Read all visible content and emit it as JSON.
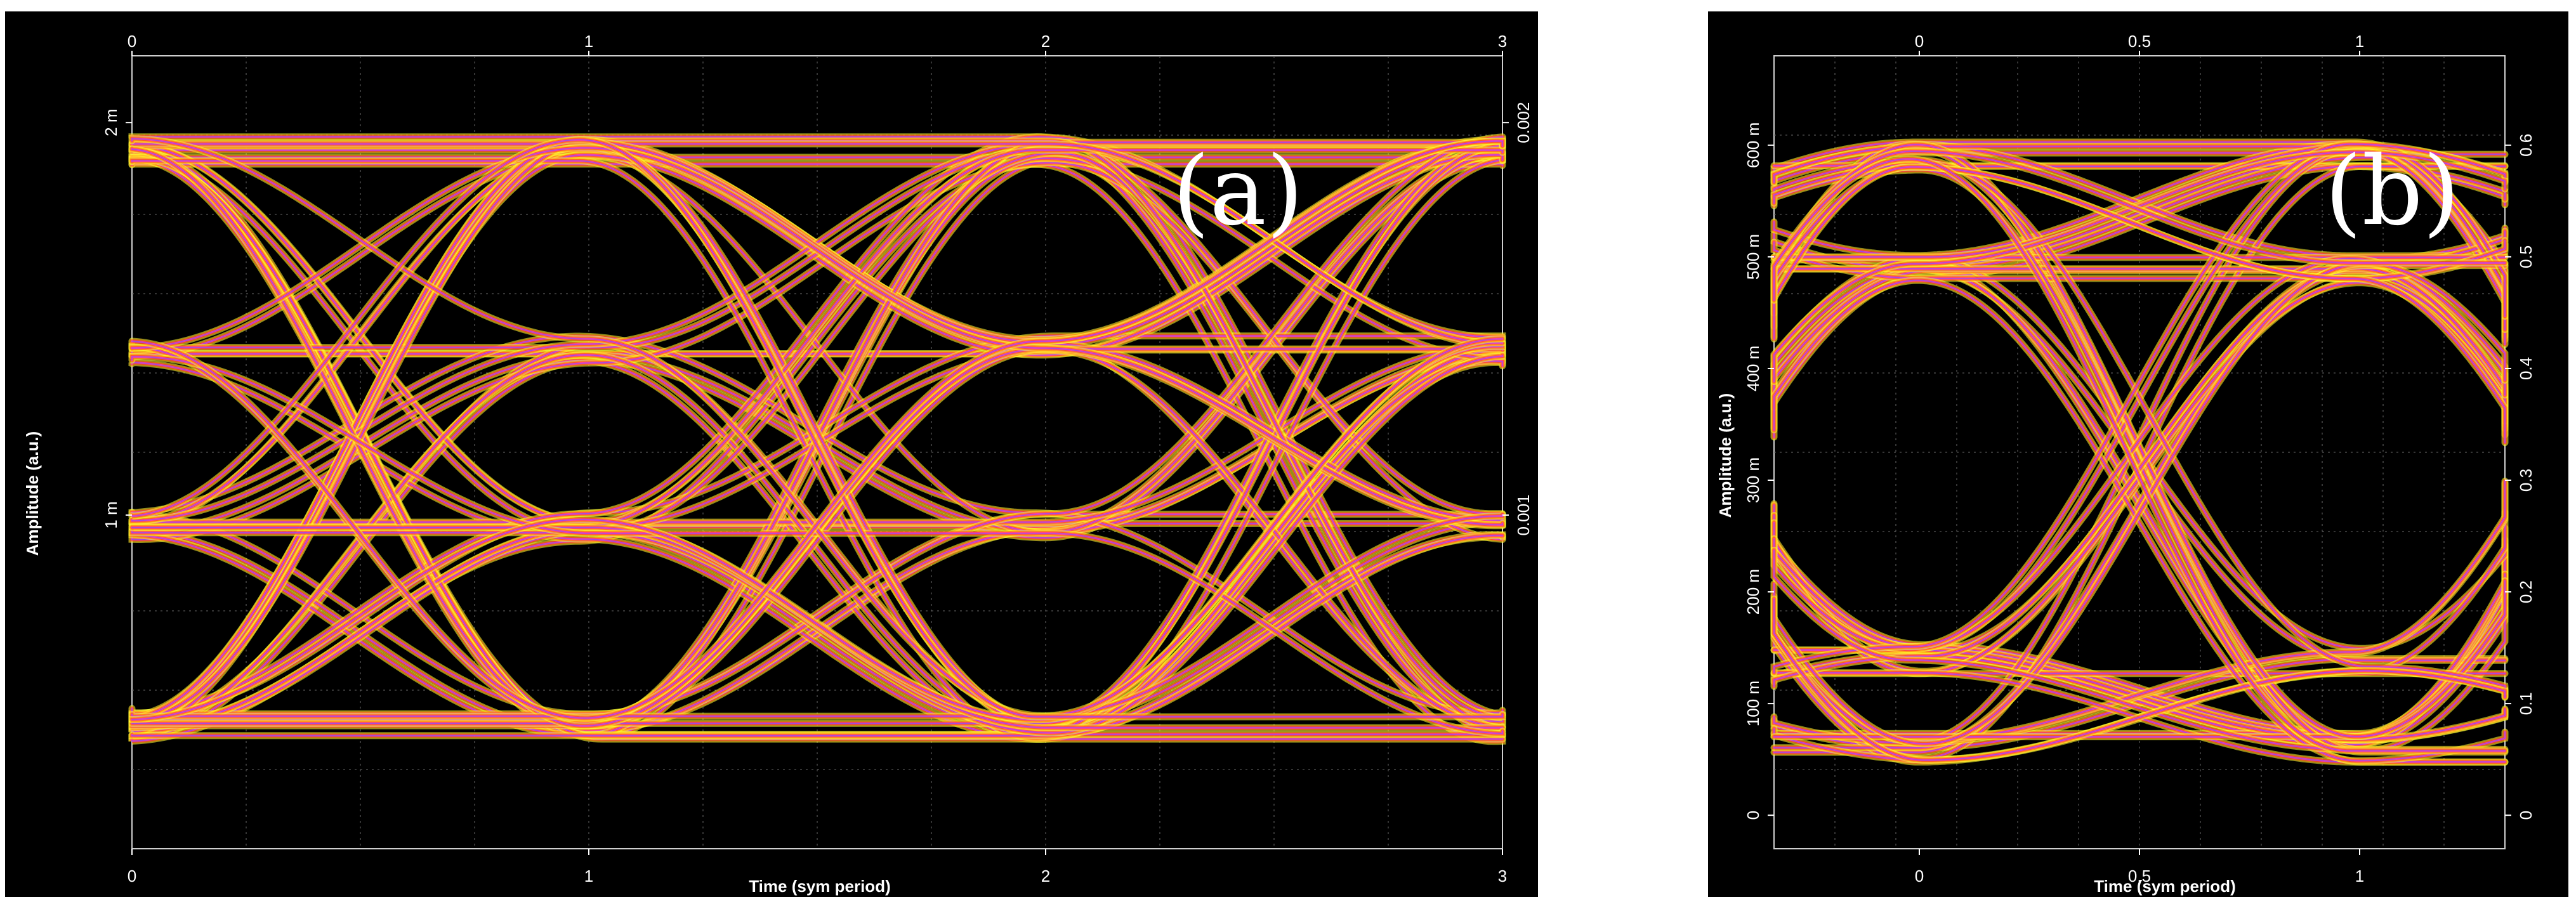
{
  "chart_data": [
    {
      "type": "line",
      "panel_label": "(a)",
      "xlabel": "Time (sym period)",
      "ylabel": "Amplitude (a.u.)",
      "xlim": [
        0,
        3
      ],
      "x_ticks_bottom": [
        "0",
        "1",
        "2",
        "3"
      ],
      "x_ticks_top": [
        "0",
        "1",
        "2",
        "3"
      ],
      "ylim_left": [
        0.00015,
        0.00217
      ],
      "y_ticks_left": [
        {
          "value": 0.001,
          "label": "1 m"
        },
        {
          "value": 0.002,
          "label": "2 m"
        }
      ],
      "y_ticks_right": [
        {
          "value": 0.001,
          "label": "0.001"
        },
        {
          "value": 0.002,
          "label": "0.002"
        }
      ],
      "eye_levels": [
        0.00046,
        0.00097,
        0.00142,
        0.00193
      ],
      "grid": true,
      "colors": {
        "background": "#000000",
        "trace_hot": "#ff1a3c",
        "trace_warm": "#ff7a00",
        "trace_dense": "#ff33ff",
        "trace_core": "#5a5aff",
        "edge": "#ffff33"
      }
    },
    {
      "type": "line",
      "panel_label": "(b)",
      "xlabel": "Time (sym period)",
      "ylabel": "Amplitude (a.u.)",
      "xlim": [
        -0.33,
        1.33
      ],
      "x_ticks_bottom": [
        "0",
        "0.5",
        "1"
      ],
      "x_ticks_top": [
        "0",
        "0.5",
        "1"
      ],
      "ylim_left": [
        -0.03,
        0.68
      ],
      "y_ticks_left": [
        {
          "value": 0,
          "label": "0"
        },
        {
          "value": 0.1,
          "label": "100 m"
        },
        {
          "value": 0.2,
          "label": "200 m"
        },
        {
          "value": 0.3,
          "label": "300 m"
        },
        {
          "value": 0.4,
          "label": "400 m"
        },
        {
          "value": 0.5,
          "label": "500 m"
        },
        {
          "value": 0.6,
          "label": "600 m"
        }
      ],
      "y_ticks_right": [
        {
          "value": 0,
          "label": "0"
        },
        {
          "value": 0.1,
          "label": "0.1"
        },
        {
          "value": 0.2,
          "label": "0.2"
        },
        {
          "value": 0.3,
          "label": "0.3"
        },
        {
          "value": 0.4,
          "label": "0.4"
        },
        {
          "value": 0.5,
          "label": "0.5"
        },
        {
          "value": 0.6,
          "label": "0.6"
        }
      ],
      "eye_levels": [
        0.06,
        0.14,
        0.49,
        0.59
      ],
      "grid": true,
      "colors": {
        "background": "#000000",
        "trace_hot": "#ff1a3c",
        "trace_warm": "#ff7a00",
        "trace_dense": "#ff33ff",
        "trace_core": "#5a5aff",
        "edge": "#ffff33"
      }
    }
  ]
}
